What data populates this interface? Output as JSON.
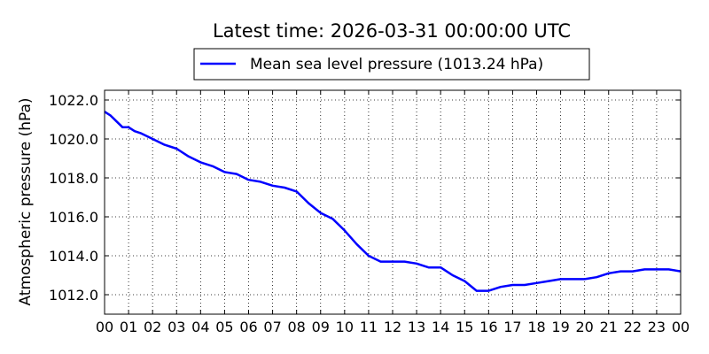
{
  "chart_data": {
    "type": "line",
    "title": "Latest time: 2026-03-31 00:00:00 UTC",
    "xlabel": "",
    "ylabel": "Atmospheric pressure (hPa)",
    "xlim": [
      0,
      24
    ],
    "ylim": [
      1011.0,
      1022.5
    ],
    "grid": true,
    "grid_style": "dotted",
    "legend_position": "top-center",
    "x_ticks": [
      0,
      1,
      2,
      3,
      4,
      5,
      6,
      7,
      8,
      9,
      10,
      11,
      12,
      13,
      14,
      15,
      16,
      17,
      18,
      19,
      20,
      21,
      22,
      23,
      24
    ],
    "x_tick_labels": [
      "00",
      "01",
      "02",
      "03",
      "04",
      "05",
      "06",
      "07",
      "08",
      "09",
      "10",
      "11",
      "12",
      "13",
      "14",
      "15",
      "16",
      "17",
      "18",
      "19",
      "20",
      "21",
      "22",
      "23",
      "00"
    ],
    "y_ticks": [
      1012.0,
      1014.0,
      1016.0,
      1018.0,
      1020.0,
      1022.0
    ],
    "y_tick_labels": [
      "1012.0",
      "1014.0",
      "1016.0",
      "1018.0",
      "1020.0",
      "1022.0"
    ],
    "series": [
      {
        "name": "Mean sea level pressure (1013.24 hPa)",
        "color": "#0000ff",
        "x": [
          0,
          0.25,
          0.5,
          0.75,
          1,
          1.25,
          1.5,
          2,
          2.5,
          3,
          3.5,
          4,
          4.5,
          5,
          5.5,
          6,
          6.5,
          7,
          7.5,
          8,
          8.5,
          9,
          9.5,
          10,
          10.5,
          11,
          11.5,
          12,
          12.5,
          13,
          13.5,
          14,
          14.5,
          15,
          15.5,
          16,
          16.5,
          17,
          17.5,
          18,
          18.5,
          19,
          19.5,
          20,
          20.5,
          21,
          21.5,
          22,
          22.5,
          23,
          23.5,
          24
        ],
        "y": [
          1021.4,
          1021.2,
          1020.9,
          1020.6,
          1020.6,
          1020.4,
          1020.3,
          1020.0,
          1019.7,
          1019.5,
          1019.1,
          1018.8,
          1018.6,
          1018.3,
          1018.2,
          1017.9,
          1017.8,
          1017.6,
          1017.5,
          1017.3,
          1016.7,
          1016.2,
          1015.9,
          1015.3,
          1014.6,
          1014.0,
          1013.7,
          1013.7,
          1013.7,
          1013.6,
          1013.4,
          1013.4,
          1013.0,
          1012.7,
          1012.2,
          1012.2,
          1012.4,
          1012.5,
          1012.5,
          1012.6,
          1012.7,
          1012.8,
          1012.8,
          1012.8,
          1012.9,
          1013.1,
          1013.2,
          1013.2,
          1013.3,
          1013.3,
          1013.3,
          1013.2
        ]
      }
    ]
  }
}
